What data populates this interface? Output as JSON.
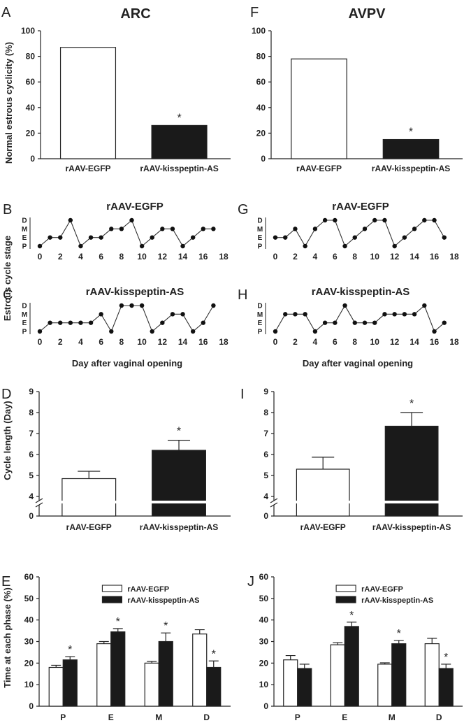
{
  "figure": {
    "left_title": "ARC",
    "right_title": "AVPV",
    "ylabel_cyclicity": "Normal estrous cyclicity (%)",
    "ylabel_stage": "Estrous cycle stage",
    "ylabel_length": "Cycle length (Day)",
    "ylabel_time": "Time at each phase (%)",
    "xlabel_day": "Day after vaginal opening",
    "stage_labels": [
      "D",
      "M",
      "E",
      "P"
    ],
    "significance_mark": "*"
  },
  "chart_data": [
    {
      "panel": "A",
      "type": "bar",
      "group": "ARC",
      "categories": [
        "rAAV-EGFP",
        "rAAV-kisspeptin-AS"
      ],
      "values": [
        87,
        26
      ],
      "colors": [
        "#ffffff",
        "#1a1a1a"
      ],
      "significant": [
        false,
        true
      ],
      "ylim": [
        0,
        100
      ],
      "yticks": [
        0,
        20,
        40,
        60,
        80,
        100
      ],
      "ylabel": "Normal estrous cyclicity (%)"
    },
    {
      "panel": "B",
      "type": "line",
      "group": "ARC",
      "title": "rAAV-EGFP",
      "x": [
        0,
        1,
        2,
        3,
        4,
        5,
        6,
        7,
        8,
        9,
        10,
        11,
        12,
        13,
        14,
        15,
        16,
        17
      ],
      "y": [
        0,
        1,
        1,
        3,
        0,
        1,
        1,
        2,
        2,
        3,
        0,
        1,
        2,
        2,
        0,
        1,
        2,
        2
      ],
      "xticks": [
        0,
        2,
        4,
        6,
        8,
        10,
        12,
        14,
        16,
        18
      ],
      "stages": [
        "P",
        "E",
        "M",
        "D"
      ]
    },
    {
      "panel": "C",
      "type": "line",
      "group": "ARC",
      "title": "rAAV-kisspeptin-AS",
      "x": [
        0,
        1,
        2,
        3,
        4,
        5,
        6,
        7,
        8,
        9,
        10,
        11,
        12,
        13,
        14,
        15,
        16,
        17
      ],
      "y": [
        0,
        1,
        1,
        1,
        1,
        1,
        2,
        0,
        3,
        3,
        3,
        0,
        1,
        2,
        2,
        0,
        1,
        3
      ],
      "xticks": [
        0,
        2,
        4,
        6,
        8,
        10,
        12,
        14,
        16,
        18
      ],
      "stages": [
        "P",
        "E",
        "M",
        "D"
      ],
      "xlabel": "Day after vaginal opening"
    },
    {
      "panel": "D",
      "type": "bar",
      "group": "ARC",
      "categories": [
        "rAAV-EGFP",
        "rAAV-kisspeptin-AS"
      ],
      "values": [
        4.85,
        6.2
      ],
      "errors": [
        0.35,
        0.48
      ],
      "colors": [
        "#ffffff",
        "#1a1a1a"
      ],
      "significant": [
        false,
        true
      ],
      "ylim": [
        0,
        9
      ],
      "yticks": [
        "0",
        "4",
        "5",
        "6",
        "7",
        "8",
        "9"
      ],
      "axis_break": [
        0,
        4
      ],
      "ylabel": "Cycle length (Day)"
    },
    {
      "panel": "E",
      "type": "bar",
      "group": "ARC",
      "categories": [
        "P",
        "E",
        "M",
        "D"
      ],
      "series": [
        {
          "name": "rAAV-EGFP",
          "color": "#ffffff",
          "values": [
            18,
            29,
            20,
            33.5
          ],
          "errors": [
            1.0,
            1.0,
            0.8,
            2.0
          ],
          "significant": [
            false,
            false,
            false,
            false
          ]
        },
        {
          "name": "rAAV-kisspeptin-AS",
          "color": "#1a1a1a",
          "values": [
            21.5,
            34.5,
            30,
            18
          ],
          "errors": [
            1.5,
            1.5,
            4.0,
            3.0
          ],
          "significant": [
            true,
            true,
            true,
            true
          ]
        }
      ],
      "ylim": [
        0,
        60
      ],
      "yticks": [
        0,
        10,
        20,
        30,
        40,
        50,
        60
      ],
      "ylabel": "Time at each phase (%)",
      "legend": "top-center"
    },
    {
      "panel": "F",
      "type": "bar",
      "group": "AVPV",
      "categories": [
        "rAAV-EGFP",
        "rAAV-kisspeptin-AS"
      ],
      "values": [
        78,
        15
      ],
      "colors": [
        "#ffffff",
        "#1a1a1a"
      ],
      "significant": [
        false,
        true
      ],
      "ylim": [
        0,
        100
      ],
      "yticks": [
        0,
        20,
        40,
        60,
        80,
        100
      ]
    },
    {
      "panel": "G",
      "type": "line",
      "group": "AVPV",
      "title": "rAAV-EGFP",
      "x": [
        0,
        1,
        2,
        3,
        4,
        5,
        6,
        7,
        8,
        9,
        10,
        11,
        12,
        13,
        14,
        15,
        16,
        17
      ],
      "y": [
        1,
        1,
        2,
        0,
        2,
        3,
        3,
        0,
        1,
        2,
        3,
        3,
        0,
        1,
        2,
        3,
        3,
        1
      ],
      "xticks": [
        0,
        2,
        4,
        6,
        8,
        10,
        12,
        14,
        16,
        18
      ],
      "stages": [
        "P",
        "E",
        "M",
        "D"
      ]
    },
    {
      "panel": "H",
      "type": "line",
      "group": "AVPV",
      "title": "rAAV-kisspeptin-AS",
      "x": [
        0,
        1,
        2,
        3,
        4,
        5,
        6,
        7,
        8,
        9,
        10,
        11,
        12,
        13,
        14,
        15,
        16,
        17
      ],
      "y": [
        0,
        2,
        2,
        2,
        0,
        1,
        1,
        3,
        1,
        1,
        1,
        2,
        2,
        2,
        2,
        3,
        0,
        1
      ],
      "xticks": [
        0,
        2,
        4,
        6,
        8,
        10,
        12,
        14,
        16,
        18
      ],
      "stages": [
        "P",
        "E",
        "M",
        "D"
      ],
      "xlabel": "Day after vaginal opening"
    },
    {
      "panel": "I",
      "type": "bar",
      "group": "AVPV",
      "categories": [
        "rAAV-EGFP",
        "rAAV-kisspeptin-AS"
      ],
      "values": [
        5.3,
        7.35
      ],
      "errors": [
        0.57,
        0.65
      ],
      "colors": [
        "#ffffff",
        "#1a1a1a"
      ],
      "significant": [
        false,
        true
      ],
      "ylim": [
        0,
        9
      ],
      "yticks": [
        "0",
        "4",
        "5",
        "6",
        "7",
        "8",
        "9"
      ],
      "axis_break": [
        0,
        4
      ]
    },
    {
      "panel": "J",
      "type": "bar",
      "group": "AVPV",
      "categories": [
        "P",
        "E",
        "M",
        "D"
      ],
      "series": [
        {
          "name": "rAAV-EGFP",
          "color": "#ffffff",
          "values": [
            21.5,
            28.5,
            19.5,
            29
          ],
          "errors": [
            2.0,
            1.0,
            0.6,
            2.5
          ],
          "significant": [
            false,
            false,
            false,
            false
          ]
        },
        {
          "name": "rAAV-kisspeptin-AS",
          "color": "#1a1a1a",
          "values": [
            17.5,
            37,
            29,
            17.5
          ],
          "errors": [
            2.0,
            2.0,
            1.5,
            2.0
          ],
          "significant": [
            false,
            true,
            true,
            true
          ]
        }
      ],
      "ylim": [
        0,
        60
      ],
      "yticks": [
        0,
        10,
        20,
        30,
        40,
        50,
        60
      ],
      "legend": "top-center"
    }
  ]
}
